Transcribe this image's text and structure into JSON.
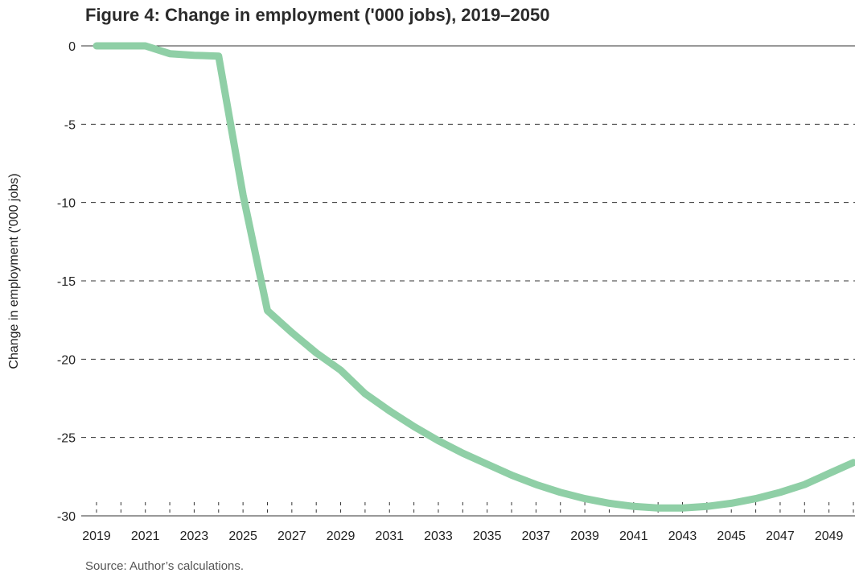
{
  "title": "Figure 4: Change in employment ('000 jobs), 2019–2050",
  "source": "Source: Author’s calculations.",
  "chart_data": {
    "type": "line",
    "ylabel": "Change in employment ('000 jobs)",
    "xlabel": "",
    "xlim": [
      2019,
      2050
    ],
    "ylim": [
      -30,
      0
    ],
    "grid": "horizontal dashed",
    "y_ticks": [
      0,
      -5,
      -10,
      -15,
      -20,
      -25,
      -30
    ],
    "x_tick_labels": [
      "2019",
      "2021",
      "2023",
      "2025",
      "2027",
      "2029",
      "2031",
      "2033",
      "2035",
      "2037",
      "2039",
      "2041",
      "2043",
      "2045",
      "2047",
      "2049"
    ],
    "color": "#8fcfa6",
    "series": [
      {
        "x": [
          2019,
          2020,
          2021,
          2022,
          2023,
          2024,
          2025,
          2026,
          2027,
          2028,
          2029,
          2030,
          2031,
          2032,
          2033,
          2034,
          2035,
          2036,
          2037,
          2038,
          2039,
          2040,
          2041,
          2042,
          2043,
          2044,
          2045,
          2046,
          2047,
          2048,
          2049,
          2050
        ],
        "values": [
          0,
          0,
          0,
          -0.5,
          -0.6,
          -0.65,
          -9.5,
          -16.9,
          -18.3,
          -19.6,
          -20.7,
          -22.2,
          -23.3,
          -24.3,
          -25.2,
          -26.0,
          -26.7,
          -27.4,
          -28.0,
          -28.5,
          -28.9,
          -29.2,
          -29.4,
          -29.5,
          -29.5,
          -29.4,
          -29.2,
          -28.9,
          -28.5,
          -28.0,
          -27.3,
          -26.6
        ]
      }
    ]
  }
}
